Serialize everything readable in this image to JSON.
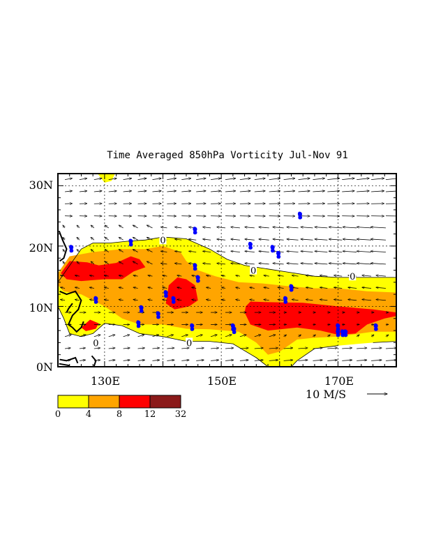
{
  "title": "Time Averaged 850hPa Vorticity  Jul-Nov  91",
  "y_ticks": [
    "30N",
    "20N",
    "10N",
    "0N"
  ],
  "x_ticks": [
    "130E",
    "150E",
    "170E"
  ],
  "vector_ref_label": "10 M/S",
  "contour_label": "0",
  "legend": {
    "labels": [
      "0",
      "4",
      "8",
      "12",
      "32"
    ],
    "colors": [
      "#ffff00",
      "#ffa500",
      "#ff0000",
      "#8b1a1a"
    ]
  },
  "map_data": {
    "domain": {
      "lon": [
        122,
        180
      ],
      "lat": [
        0,
        32
      ]
    },
    "grid_lons": [
      130,
      140,
      150,
      160,
      170
    ],
    "grid_lats": [
      10,
      20,
      30
    ],
    "contour_labels": [
      {
        "lon": 140.0,
        "lat": 21.0
      },
      {
        "lon": 155.5,
        "lat": 16.0
      },
      {
        "lon": 172.5,
        "lat": 15.0
      },
      {
        "lon": 128.5,
        "lat": 4.0
      },
      {
        "lon": 144.5,
        "lat": 4.0
      }
    ],
    "storms": [
      [
        124.3,
        19.5
      ],
      [
        134.5,
        20.5
      ],
      [
        145.5,
        22.5
      ],
      [
        155.0,
        20.0
      ],
      [
        158.8,
        19.5
      ],
      [
        159.8,
        18.5
      ],
      [
        163.5,
        25.0
      ],
      [
        145.5,
        16.5
      ],
      [
        146.0,
        14.5
      ],
      [
        162.0,
        13.0
      ],
      [
        128.5,
        11.0
      ],
      [
        136.3,
        9.5
      ],
      [
        140.5,
        12.0
      ],
      [
        141.8,
        11.0
      ],
      [
        139.2,
        8.5
      ],
      [
        135.8,
        7.0
      ],
      [
        145.0,
        6.5
      ],
      [
        152.0,
        6.5
      ],
      [
        152.2,
        6.0
      ],
      [
        161.0,
        11.0
      ],
      [
        170.0,
        6.5
      ],
      [
        170.0,
        5.5
      ],
      [
        170.8,
        5.5
      ],
      [
        171.3,
        5.5
      ],
      [
        176.5,
        6.5
      ]
    ],
    "storm_symbol": "tropical-cyclone-icon",
    "shading": {
      "yellow": [
        [
          122,
          14
        ],
        [
          126,
          19.5
        ],
        [
          128,
          20.5
        ],
        [
          131,
          20.5
        ],
        [
          134,
          20.8
        ],
        [
          137,
          21
        ],
        [
          140,
          21.5
        ],
        [
          144,
          21.2
        ],
        [
          148,
          19.5
        ],
        [
          151,
          17.8
        ],
        [
          154,
          16.8
        ],
        [
          158,
          16.2
        ],
        [
          162,
          15.6
        ],
        [
          166,
          15.0
        ],
        [
          170,
          14.8
        ],
        [
          175,
          14.8
        ],
        [
          180,
          14.8
        ],
        [
          180,
          4.2
        ],
        [
          176,
          4.0
        ],
        [
          170,
          3.5
        ],
        [
          166,
          3.0
        ],
        [
          163,
          1.0
        ],
        [
          162,
          0
        ],
        [
          158,
          0
        ],
        [
          156,
          1.5
        ],
        [
          152,
          3.8
        ],
        [
          148,
          4.2
        ],
        [
          144,
          4.2
        ],
        [
          140,
          5.0
        ],
        [
          136,
          5.5
        ],
        [
          133,
          6.8
        ],
        [
          130,
          7.2
        ],
        [
          128,
          5.5
        ],
        [
          126,
          5.0
        ],
        [
          124,
          5.5
        ],
        [
          123,
          8.0
        ],
        [
          122,
          10
        ]
      ],
      "orange": [
        [
          122,
          15.5
        ],
        [
          124,
          18.3
        ],
        [
          128,
          19.0
        ],
        [
          133,
          19.5
        ],
        [
          137,
          19.5
        ],
        [
          140,
          20.0
        ],
        [
          143,
          19.0
        ],
        [
          144,
          17.5
        ],
        [
          146,
          16.0
        ],
        [
          149,
          15.0
        ],
        [
          153,
          14.0
        ],
        [
          157,
          13.8
        ],
        [
          162,
          13.3
        ],
        [
          166,
          13.0
        ],
        [
          170,
          13.0
        ],
        [
          175,
          12.5
        ],
        [
          180,
          12.3
        ],
        [
          180,
          5.8
        ],
        [
          176,
          5.8
        ],
        [
          170,
          5.0
        ],
        [
          166,
          4.8
        ],
        [
          163,
          4.5
        ],
        [
          160,
          2.5
        ],
        [
          158,
          2.0
        ],
        [
          156,
          4.0
        ],
        [
          153,
          5.8
        ],
        [
          148,
          6.2
        ],
        [
          144,
          6.3
        ],
        [
          140,
          7.0
        ],
        [
          136,
          7.0
        ],
        [
          133,
          8.0
        ],
        [
          130,
          10.0
        ],
        [
          128,
          11.0
        ],
        [
          126,
          12.0
        ],
        [
          123,
          12.5
        ],
        [
          122,
          13.5
        ]
      ],
      "red": [
        [
          [
            122.5,
            15.5
          ],
          [
            124,
            17.5
          ],
          [
            127,
            17.3
          ],
          [
            129,
            16.8
          ],
          [
            132,
            17.2
          ],
          [
            134.5,
            18.3
          ],
          [
            136,
            17.8
          ],
          [
            137,
            16.5
          ],
          [
            135,
            15.8
          ],
          [
            133,
            14.5
          ],
          [
            130,
            14.5
          ],
          [
            126,
            14.2
          ],
          [
            123.5,
            14.5
          ]
        ],
        [
          [
            141,
            13.5
          ],
          [
            142.5,
            14.8
          ],
          [
            144,
            14.5
          ],
          [
            145.5,
            13.5
          ],
          [
            146,
            11.0
          ],
          [
            144.5,
            10.0
          ],
          [
            142,
            9.5
          ],
          [
            140.5,
            10.5
          ]
        ],
        [
          [
            154.2,
            10.0
          ],
          [
            154,
            9.0
          ],
          [
            155,
            7.0
          ],
          [
            158,
            6.0
          ],
          [
            163,
            6.5
          ],
          [
            167,
            6.0
          ],
          [
            170,
            5.3
          ],
          [
            173,
            5.5
          ],
          [
            175,
            7.0
          ],
          [
            178,
            8.0
          ],
          [
            180,
            8.4
          ],
          [
            180,
            9.0
          ],
          [
            176,
            9.5
          ],
          [
            170,
            10.0
          ],
          [
            164,
            10.6
          ],
          [
            158,
            10.7
          ],
          [
            155,
            10.8
          ]
        ],
        [
          [
            126,
            6.5
          ],
          [
            127.5,
            7.8
          ],
          [
            129,
            7.2
          ],
          [
            128.5,
            6.3
          ],
          [
            126.8,
            5.9
          ]
        ]
      ],
      "yellow_top": [
        [
          128.8,
          32
        ],
        [
          130,
          30.5
        ],
        [
          131.2,
          30.8
        ],
        [
          131.8,
          32
        ]
      ]
    },
    "coastlines": [
      [
        [
          122.2,
          22.5
        ],
        [
          122.8,
          21
        ],
        [
          123.5,
          19.5
        ],
        [
          123.0,
          18.0
        ],
        [
          122.3,
          17.5
        ]
      ],
      [
        [
          122.3,
          12.5
        ],
        [
          123.5,
          12.0
        ],
        [
          125.0,
          12.5
        ],
        [
          126.0,
          11.0
        ],
        [
          125.5,
          9.5
        ],
        [
          124.5,
          8.5
        ],
        [
          123.8,
          7.0
        ],
        [
          124.5,
          6.5
        ],
        [
          125.2,
          5.8
        ],
        [
          126.0,
          6.5
        ],
        [
          126.4,
          7.5
        ]
      ],
      [
        [
          124.5,
          10.5
        ],
        [
          123.8,
          9.6
        ],
        [
          123.5,
          9.0
        ]
      ],
      [
        [
          122.3,
          1.2
        ],
        [
          123.5,
          1.0
        ],
        [
          125.0,
          1.5
        ],
        [
          125.4,
          0.6
        ]
      ],
      [
        [
          127.8,
          1.8
        ],
        [
          128.5,
          1.0
        ],
        [
          128.2,
          0.1
        ]
      ],
      [
        [
          122.2,
          0.5
        ],
        [
          124.0,
          0.2
        ]
      ]
    ]
  }
}
